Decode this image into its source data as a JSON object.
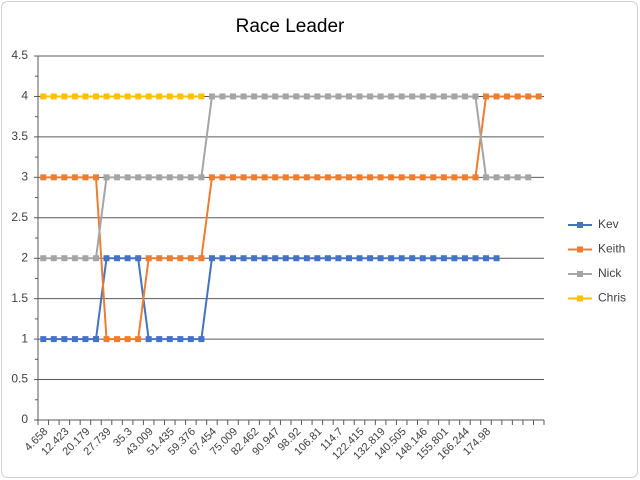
{
  "chart_data": {
    "type": "line",
    "title": "Race Leader",
    "categories": [
      "4.658",
      null,
      "12.423",
      null,
      "20.179",
      null,
      "27.739",
      null,
      "35.3",
      null,
      "43.009",
      null,
      "51.435",
      null,
      "59.376",
      null,
      "67.454",
      null,
      "75.009",
      null,
      "82.462",
      null,
      "90.947",
      null,
      "98.92",
      null,
      "106.81",
      null,
      "114.7",
      null,
      "122.415",
      null,
      "132.819",
      null,
      "140.505",
      null,
      "148.146",
      null,
      "155.801",
      null,
      "166.244",
      null,
      "174.98",
      null,
      null,
      null,
      null,
      null
    ],
    "ylim": [
      0,
      4.5
    ],
    "yticks": [
      0,
      0.5,
      1,
      1.5,
      2,
      2.5,
      3,
      3.5,
      4,
      4.5
    ],
    "grid": true,
    "legend": "right",
    "series": [
      {
        "name": "Kev",
        "color": "#4472c4",
        "values": [
          1,
          1,
          1,
          1,
          1,
          1,
          2,
          2,
          2,
          2,
          1,
          1,
          1,
          1,
          1,
          1,
          2,
          2,
          2,
          2,
          2,
          2,
          2,
          2,
          2,
          2,
          2,
          2,
          2,
          2,
          2,
          2,
          2,
          2,
          2,
          2,
          2,
          2,
          2,
          2,
          2,
          2,
          2,
          2,
          null,
          null,
          null,
          null
        ]
      },
      {
        "name": "Keith",
        "color": "#ed7d31",
        "values": [
          3,
          3,
          3,
          3,
          3,
          3,
          1,
          1,
          1,
          1,
          2,
          2,
          2,
          2,
          2,
          2,
          3,
          3,
          3,
          3,
          3,
          3,
          3,
          3,
          3,
          3,
          3,
          3,
          3,
          3,
          3,
          3,
          3,
          3,
          3,
          3,
          3,
          3,
          3,
          3,
          3,
          3,
          4,
          4,
          4,
          4,
          4,
          4
        ]
      },
      {
        "name": "Nick",
        "color": "#a5a5a5",
        "values": [
          2,
          2,
          2,
          2,
          2,
          2,
          3,
          3,
          3,
          3,
          3,
          3,
          3,
          3,
          3,
          3,
          4,
          4,
          4,
          4,
          4,
          4,
          4,
          4,
          4,
          4,
          4,
          4,
          4,
          4,
          4,
          4,
          4,
          4,
          4,
          4,
          4,
          4,
          4,
          4,
          4,
          4,
          3,
          3,
          3,
          3,
          3,
          null
        ]
      },
      {
        "name": "Chris",
        "color": "#ffc000",
        "values": [
          4,
          4,
          4,
          4,
          4,
          4,
          4,
          4,
          4,
          4,
          4,
          4,
          4,
          4,
          4,
          4,
          null,
          null,
          null,
          null,
          null,
          null,
          null,
          null,
          null,
          null,
          null,
          null,
          null,
          null,
          null,
          null,
          null,
          null,
          null,
          null,
          null,
          null,
          null,
          null,
          null,
          null,
          null,
          null,
          null,
          null,
          null,
          null
        ]
      }
    ]
  }
}
